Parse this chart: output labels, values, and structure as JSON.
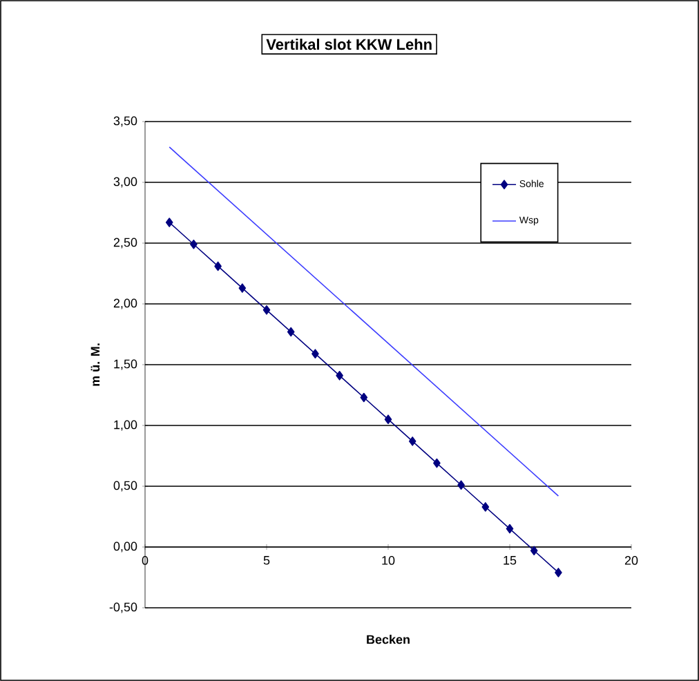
{
  "chart_data": {
    "type": "line",
    "title": "Vertikal slot KKW Lehn",
    "xlabel": "Becken",
    "ylabel": "m ü. M.",
    "xlim": [
      0,
      20
    ],
    "xticks": [
      0,
      5,
      10,
      15,
      20
    ],
    "ylim": [
      -0.5,
      3.5
    ],
    "yticks": [
      {
        "value": -0.5,
        "label": "-0,50"
      },
      {
        "value": 0,
        "label": "0,00"
      },
      {
        "value": 0.5,
        "label": "0,50"
      },
      {
        "value": 1,
        "label": "1,00"
      },
      {
        "value": 1.5,
        "label": "1,50"
      },
      {
        "value": 2,
        "label": "2,00"
      },
      {
        "value": 2.5,
        "label": "2,50"
      },
      {
        "value": 3,
        "label": "3,00"
      },
      {
        "value": 3.5,
        "label": "3,50"
      }
    ],
    "grid": "y",
    "legend": "top right",
    "series": [
      {
        "name": "Sohle",
        "color": "#000080",
        "marker": "diamond",
        "x": [
          1,
          2,
          3,
          4,
          5,
          6,
          7,
          8,
          9,
          10,
          11,
          12,
          13,
          14,
          15,
          16,
          17
        ],
        "values": [
          2.67,
          2.49,
          2.31,
          2.13,
          1.95,
          1.77,
          1.59,
          1.41,
          1.23,
          1.05,
          0.87,
          0.69,
          0.51,
          0.33,
          0.15,
          -0.03,
          -0.21
        ]
      },
      {
        "name": "Wsp",
        "color": "#3b3bff",
        "marker": "none",
        "x": [
          1,
          17
        ],
        "values": [
          3.29,
          0.42
        ]
      }
    ]
  }
}
